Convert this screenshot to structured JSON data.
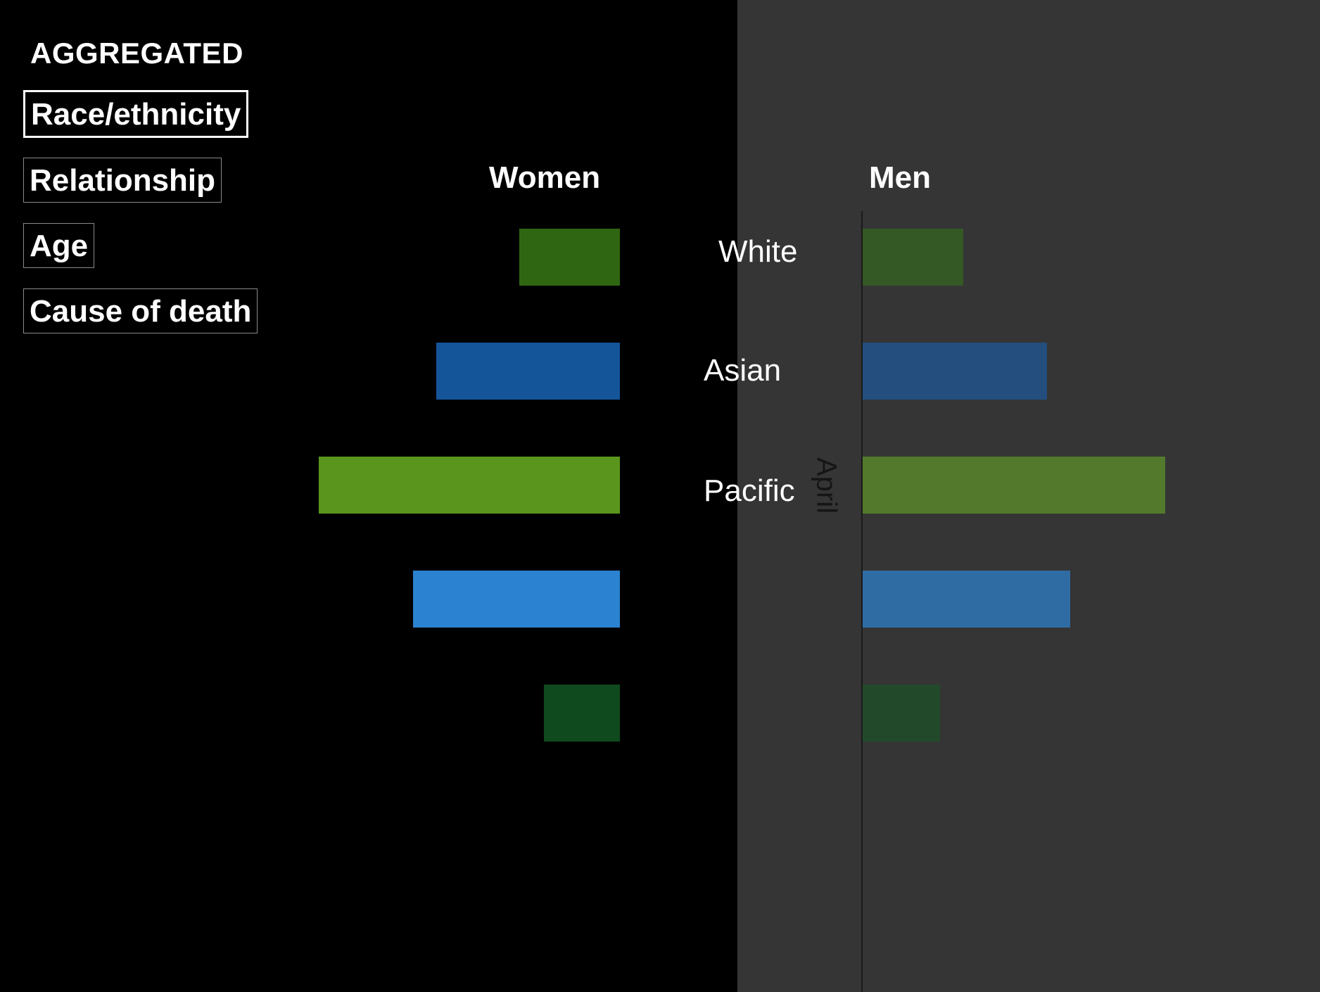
{
  "sidebar": {
    "title": "AGGREGATED",
    "filters": [
      {
        "label": "Race/ethnicity",
        "active": true
      },
      {
        "label": "Relationship",
        "active": false
      },
      {
        "label": "Age",
        "active": false
      },
      {
        "label": "Cause of death",
        "active": false
      }
    ]
  },
  "chart_data": {
    "type": "bar",
    "orientation": "horizontal-butterfly",
    "panels": [
      "Women",
      "Men"
    ],
    "categories": [
      "White",
      "Asian",
      "Pacific",
      "",
      ""
    ],
    "series": [
      {
        "name": "Women",
        "values": [
          143,
          261,
          428,
          294,
          108
        ]
      },
      {
        "name": "Men",
        "values": [
          143,
          262,
          430,
          295,
          110
        ]
      }
    ],
    "colors_women": [
      "#2e6611",
      "#14559a",
      "#5a961e",
      "#2b82d0",
      "#0f4a1e"
    ],
    "colors_men": [
      "#345924",
      "#234e7e",
      "#537a2c",
      "#306ca4",
      "#224a2a"
    ],
    "axis_annotation": "April",
    "grid": false,
    "legend": "none"
  }
}
